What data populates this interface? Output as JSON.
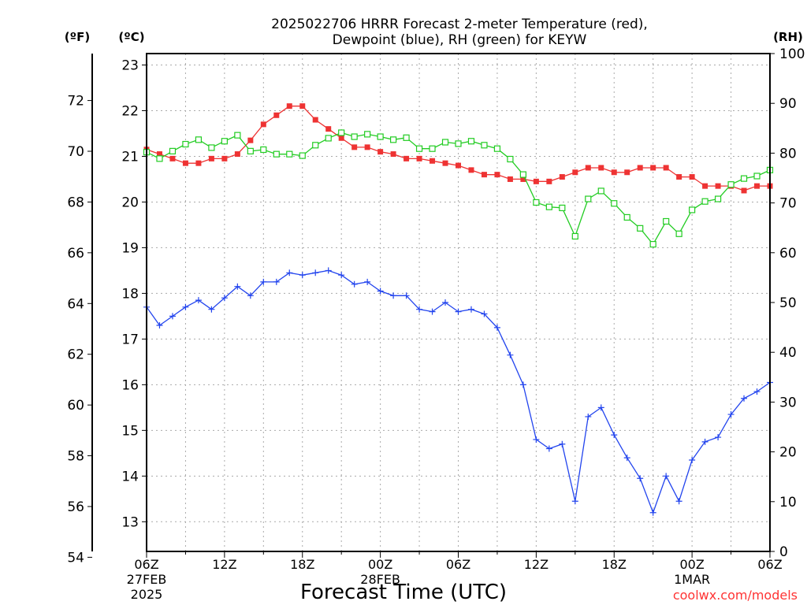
{
  "title_line1": "2025022706 HRRR Forecast 2-meter Temperature (red),",
  "title_line2": "Dewpoint (blue), RH (green) for KEYW",
  "unit_f": "(ºF)",
  "unit_c": "(ºC)",
  "unit_rh": "(RH)",
  "xaxis_title": "Forecast Time (UTC)",
  "credit": "coolwx.com/models",
  "colors": {
    "temperature": "#ee3333",
    "dewpoint": "#2244ee",
    "rh": "#22cc22",
    "grid": "#aaaaaa",
    "credit": "#ff3333"
  },
  "chart_data": {
    "type": "line",
    "title": "2025022706 HRRR Forecast 2-meter Temperature (red), Dewpoint (blue), RH (green) for KEYW",
    "xlabel": "Forecast Time (UTC)",
    "x": [
      0,
      1,
      2,
      3,
      4,
      5,
      6,
      7,
      8,
      9,
      10,
      11,
      12,
      13,
      14,
      15,
      16,
      17,
      18,
      19,
      20,
      21,
      22,
      23,
      24,
      25,
      26,
      27,
      28,
      29,
      30,
      31,
      32,
      33,
      34,
      35,
      36,
      37,
      38,
      39,
      40,
      41,
      42,
      43,
      44,
      45,
      46,
      47,
      48
    ],
    "x_unit": "forecast hour from 2025-02-27 06Z",
    "x_ticks": [
      {
        "hour": 0,
        "label": "06Z",
        "sub1": "27FEB",
        "sub2": "2025"
      },
      {
        "hour": 6,
        "label": "12Z",
        "sub1": "",
        "sub2": ""
      },
      {
        "hour": 12,
        "label": "18Z",
        "sub1": "",
        "sub2": ""
      },
      {
        "hour": 18,
        "label": "00Z",
        "sub1": "28FEB",
        "sub2": ""
      },
      {
        "hour": 24,
        "label": "06Z",
        "sub1": "",
        "sub2": ""
      },
      {
        "hour": 30,
        "label": "12Z",
        "sub1": "",
        "sub2": ""
      },
      {
        "hour": 36,
        "label": "18Z",
        "sub1": "",
        "sub2": ""
      },
      {
        "hour": 42,
        "label": "00Z",
        "sub1": "1MAR",
        "sub2": ""
      },
      {
        "hour": 48,
        "label": "06Z",
        "sub1": "",
        "sub2": ""
      }
    ],
    "celsius_axis": {
      "range": [
        12.35,
        23.25
      ],
      "ticks": [
        13,
        14,
        15,
        16,
        17,
        18,
        19,
        20,
        21,
        22,
        23
      ]
    },
    "fahrenheit_axis": {
      "range": [
        54.23,
        73.85
      ],
      "ticks": [
        54,
        56,
        58,
        60,
        62,
        64,
        66,
        68,
        70,
        72
      ]
    },
    "rh_axis": {
      "range": [
        0,
        100
      ],
      "ticks": [
        0,
        10,
        20,
        30,
        40,
        50,
        60,
        70,
        80,
        90,
        100
      ]
    },
    "grid": true,
    "series": [
      {
        "name": "Temperature",
        "units": "°C",
        "color": "#ee3333",
        "marker": "filled-square",
        "values": [
          21.15,
          21.05,
          20.95,
          20.85,
          20.85,
          20.95,
          20.95,
          21.05,
          21.35,
          21.7,
          21.9,
          22.1,
          22.1,
          21.8,
          21.6,
          21.4,
          21.2,
          21.2,
          21.1,
          21.05,
          20.95,
          20.95,
          20.9,
          20.85,
          20.8,
          20.7,
          20.6,
          20.6,
          20.5,
          20.5,
          20.45,
          20.45,
          20.55,
          20.65,
          20.75,
          20.75,
          20.65,
          20.65,
          20.75,
          20.75,
          20.75,
          20.55,
          20.55,
          20.35,
          20.35,
          20.35,
          20.25,
          20.35,
          20.35
        ]
      },
      {
        "name": "Dewpoint",
        "units": "°C",
        "color": "#2244ee",
        "marker": "plus",
        "values": [
          17.7,
          17.3,
          17.5,
          17.7,
          17.85,
          17.65,
          17.9,
          18.15,
          17.95,
          18.25,
          18.25,
          18.45,
          18.4,
          18.45,
          18.5,
          18.4,
          18.2,
          18.25,
          18.05,
          17.95,
          17.95,
          17.65,
          17.6,
          17.8,
          17.6,
          17.65,
          17.55,
          17.25,
          16.65,
          16.0,
          14.8,
          14.6,
          14.7,
          13.45,
          15.3,
          15.5,
          14.9,
          14.4,
          13.95,
          13.2,
          14.0,
          13.45,
          14.35,
          14.75,
          14.85,
          15.35,
          15.7,
          15.85,
          16.05
        ]
      },
      {
        "name": "RH",
        "units": "%",
        "color": "#22cc22",
        "marker": "open-square",
        "values": [
          80.2,
          78.9,
          80.4,
          81.8,
          82.7,
          81.1,
          82.4,
          83.6,
          80.4,
          80.7,
          79.8,
          79.8,
          79.5,
          81.6,
          83.0,
          84.1,
          83.3,
          83.8,
          83.3,
          82.7,
          83.1,
          80.9,
          80.9,
          82.2,
          81.9,
          82.4,
          81.6,
          80.9,
          78.8,
          75.7,
          70.1,
          69.2,
          69.0,
          63.3,
          70.8,
          72.4,
          69.9,
          67.1,
          64.9,
          61.7,
          66.3,
          63.8,
          68.6,
          70.3,
          70.8,
          73.7,
          74.9,
          75.4,
          76.6
        ]
      }
    ]
  }
}
